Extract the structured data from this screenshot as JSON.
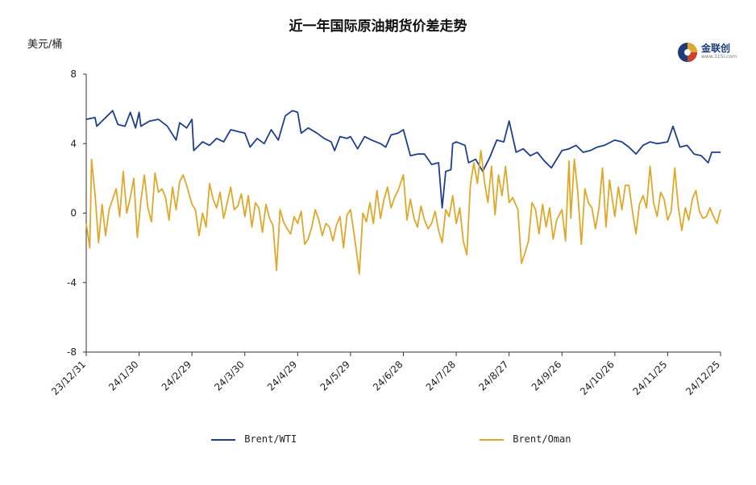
{
  "title": "近一年国际原油期货价差走势",
  "y_unit": "美元/桶",
  "logo": {
    "name": "金联创",
    "sub": "www.315i.com"
  },
  "colors": {
    "brent_wti": "#1f3f8a",
    "brent_oman": "#e0a82a",
    "axis": "#333333"
  },
  "chart_data": {
    "type": "line",
    "title": "近一年国际原油期货价差走势",
    "ylabel": "美元/桶",
    "ylim": [
      -8,
      8
    ],
    "yticks": [
      8,
      4,
      0,
      -4,
      -8
    ],
    "x_range": [
      "2023-12-31",
      "2024-12-25"
    ],
    "x_ticks": [
      "23/12/31",
      "24/1/30",
      "24/2/29",
      "24/3/30",
      "24/4/29",
      "24/5/29",
      "24/6/28",
      "24/7/28",
      "24/8/27",
      "24/9/26",
      "24/10/26",
      "24/11/25",
      "24/12/25"
    ],
    "grid": false,
    "legend_position": "bottom",
    "series": [
      {
        "name": "Brent/WTI",
        "color": "#1f3f8a",
        "points": [
          [
            "2023-12-31",
            5.4
          ],
          [
            "2024-01-05",
            5.5
          ],
          [
            "2024-01-06",
            5.0
          ],
          [
            "2024-01-12",
            5.6
          ],
          [
            "2024-01-15",
            5.9
          ],
          [
            "2024-01-18",
            5.1
          ],
          [
            "2024-01-22",
            5.0
          ],
          [
            "2024-01-25",
            5.8
          ],
          [
            "2024-01-28",
            4.9
          ],
          [
            "2024-01-30",
            5.8
          ],
          [
            "2024-01-31",
            5.0
          ],
          [
            "2024-02-05",
            5.3
          ],
          [
            "2024-02-10",
            5.4
          ],
          [
            "2024-02-15",
            5.0
          ],
          [
            "2024-02-20",
            4.2
          ],
          [
            "2024-02-22",
            5.2
          ],
          [
            "2024-02-26",
            4.9
          ],
          [
            "2024-02-29",
            5.4
          ],
          [
            "2024-03-01",
            3.6
          ],
          [
            "2024-03-06",
            4.1
          ],
          [
            "2024-03-10",
            3.9
          ],
          [
            "2024-03-14",
            4.3
          ],
          [
            "2024-03-18",
            4.1
          ],
          [
            "2024-03-22",
            4.8
          ],
          [
            "2024-03-26",
            4.7
          ],
          [
            "2024-03-30",
            4.6
          ],
          [
            "2024-04-02",
            3.8
          ],
          [
            "2024-04-06",
            4.3
          ],
          [
            "2024-04-10",
            4.0
          ],
          [
            "2024-04-14",
            4.8
          ],
          [
            "2024-04-18",
            4.2
          ],
          [
            "2024-04-22",
            5.6
          ],
          [
            "2024-04-26",
            5.9
          ],
          [
            "2024-04-29",
            5.8
          ],
          [
            "2024-05-01",
            4.6
          ],
          [
            "2024-05-05",
            4.9
          ],
          [
            "2024-05-10",
            4.6
          ],
          [
            "2024-05-14",
            4.3
          ],
          [
            "2024-05-18",
            4.1
          ],
          [
            "2024-05-20",
            3.6
          ],
          [
            "2024-05-23",
            4.4
          ],
          [
            "2024-05-27",
            4.3
          ],
          [
            "2024-05-29",
            4.4
          ],
          [
            "2024-06-02",
            3.7
          ],
          [
            "2024-06-06",
            4.4
          ],
          [
            "2024-06-10",
            4.2
          ],
          [
            "2024-06-15",
            4.0
          ],
          [
            "2024-06-18",
            3.8
          ],
          [
            "2024-06-21",
            4.5
          ],
          [
            "2024-06-25",
            4.6
          ],
          [
            "2024-06-28",
            4.8
          ],
          [
            "2024-07-02",
            3.3
          ],
          [
            "2024-07-06",
            3.4
          ],
          [
            "2024-07-10",
            3.4
          ],
          [
            "2024-07-14",
            2.8
          ],
          [
            "2024-07-18",
            2.9
          ],
          [
            "2024-07-20",
            0.3
          ],
          [
            "2024-07-22",
            2.4
          ],
          [
            "2024-07-25",
            2.5
          ],
          [
            "2024-07-26",
            4.0
          ],
          [
            "2024-07-28",
            4.1
          ],
          [
            "2024-08-02",
            3.9
          ],
          [
            "2024-08-04",
            2.9
          ],
          [
            "2024-08-08",
            3.1
          ],
          [
            "2024-08-12",
            2.4
          ],
          [
            "2024-08-16",
            3.2
          ],
          [
            "2024-08-20",
            4.2
          ],
          [
            "2024-08-24",
            4.1
          ],
          [
            "2024-08-27",
            5.3
          ],
          [
            "2024-08-31",
            3.5
          ],
          [
            "2024-09-04",
            3.7
          ],
          [
            "2024-09-08",
            3.3
          ],
          [
            "2024-09-12",
            3.5
          ],
          [
            "2024-09-16",
            3.0
          ],
          [
            "2024-09-20",
            2.6
          ],
          [
            "2024-09-26",
            3.6
          ],
          [
            "2024-09-30",
            3.7
          ],
          [
            "2024-10-04",
            3.9
          ],
          [
            "2024-10-08",
            3.5
          ],
          [
            "2024-10-12",
            3.6
          ],
          [
            "2024-10-16",
            3.8
          ],
          [
            "2024-10-20",
            3.9
          ],
          [
            "2024-10-26",
            4.2
          ],
          [
            "2024-10-30",
            4.1
          ],
          [
            "2024-11-03",
            3.8
          ],
          [
            "2024-11-07",
            3.4
          ],
          [
            "2024-11-11",
            3.9
          ],
          [
            "2024-11-15",
            4.1
          ],
          [
            "2024-11-19",
            4.0
          ],
          [
            "2024-11-25",
            4.1
          ],
          [
            "2024-11-28",
            5.0
          ],
          [
            "2024-12-02",
            3.8
          ],
          [
            "2024-12-06",
            3.9
          ],
          [
            "2024-12-10",
            3.4
          ],
          [
            "2024-12-14",
            3.3
          ],
          [
            "2024-12-18",
            2.9
          ],
          [
            "2024-12-20",
            3.5
          ],
          [
            "2024-12-25",
            3.5
          ]
        ]
      },
      {
        "name": "Brent/Oman",
        "color": "#e0a82a",
        "points": [
          [
            "2023-12-31",
            -0.6
          ],
          [
            "2024-01-02",
            -2.0
          ],
          [
            "2024-01-03",
            3.1
          ],
          [
            "2024-01-05",
            1.1
          ],
          [
            "2024-01-07",
            -1.7
          ],
          [
            "2024-01-09",
            0.5
          ],
          [
            "2024-01-11",
            -1.3
          ],
          [
            "2024-01-13",
            0.2
          ],
          [
            "2024-01-15",
            0.8
          ],
          [
            "2024-01-17",
            1.4
          ],
          [
            "2024-01-19",
            -0.2
          ],
          [
            "2024-01-21",
            2.4
          ],
          [
            "2024-01-23",
            0.0
          ],
          [
            "2024-01-25",
            0.9
          ],
          [
            "2024-01-27",
            2.0
          ],
          [
            "2024-01-29",
            -1.4
          ],
          [
            "2024-01-31",
            0.7
          ],
          [
            "2024-02-02",
            2.2
          ],
          [
            "2024-02-04",
            0.3
          ],
          [
            "2024-02-06",
            -0.5
          ],
          [
            "2024-02-08",
            2.3
          ],
          [
            "2024-02-10",
            1.2
          ],
          [
            "2024-02-12",
            1.4
          ],
          [
            "2024-02-14",
            0.9
          ],
          [
            "2024-02-16",
            -0.4
          ],
          [
            "2024-02-18",
            1.5
          ],
          [
            "2024-02-20",
            0.2
          ],
          [
            "2024-02-22",
            1.8
          ],
          [
            "2024-02-24",
            2.2
          ],
          [
            "2024-02-26",
            1.6
          ],
          [
            "2024-02-29",
            0.5
          ],
          [
            "2024-03-02",
            0.2
          ],
          [
            "2024-03-04",
            -1.3
          ],
          [
            "2024-03-06",
            0.0
          ],
          [
            "2024-03-08",
            -0.8
          ],
          [
            "2024-03-10",
            1.7
          ],
          [
            "2024-03-12",
            0.8
          ],
          [
            "2024-03-14",
            0.3
          ],
          [
            "2024-03-16",
            1.2
          ],
          [
            "2024-03-18",
            -0.3
          ],
          [
            "2024-03-20",
            0.6
          ],
          [
            "2024-03-22",
            1.5
          ],
          [
            "2024-03-24",
            0.2
          ],
          [
            "2024-03-26",
            0.4
          ],
          [
            "2024-03-28",
            1.1
          ],
          [
            "2024-03-30",
            -0.2
          ],
          [
            "2024-04-01",
            1.0
          ],
          [
            "2024-04-03",
            -0.8
          ],
          [
            "2024-04-05",
            0.6
          ],
          [
            "2024-04-07",
            0.3
          ],
          [
            "2024-04-09",
            -1.1
          ],
          [
            "2024-04-11",
            0.5
          ],
          [
            "2024-04-13",
            -0.3
          ],
          [
            "2024-04-15",
            -0.7
          ],
          [
            "2024-04-17",
            -3.3
          ],
          [
            "2024-04-19",
            0.2
          ],
          [
            "2024-04-21",
            -0.5
          ],
          [
            "2024-04-23",
            -0.9
          ],
          [
            "2024-04-25",
            -1.2
          ],
          [
            "2024-04-27",
            -0.2
          ],
          [
            "2024-04-29",
            -0.6
          ],
          [
            "2024-05-01",
            0.1
          ],
          [
            "2024-05-03",
            -1.8
          ],
          [
            "2024-05-05",
            -1.5
          ],
          [
            "2024-05-07",
            -0.8
          ],
          [
            "2024-05-09",
            0.2
          ],
          [
            "2024-05-11",
            -0.4
          ],
          [
            "2024-05-13",
            -1.3
          ],
          [
            "2024-05-15",
            -0.6
          ],
          [
            "2024-05-17",
            -0.8
          ],
          [
            "2024-05-19",
            -1.6
          ],
          [
            "2024-05-21",
            -0.7
          ],
          [
            "2024-05-23",
            -0.2
          ],
          [
            "2024-05-25",
            -2.0
          ],
          [
            "2024-05-27",
            -0.1
          ],
          [
            "2024-05-29",
            0.2
          ],
          [
            "2024-05-31",
            -1.2
          ],
          [
            "2024-06-02",
            -2.7
          ],
          [
            "2024-06-03",
            -3.5
          ],
          [
            "2024-06-05",
            0.0
          ],
          [
            "2024-06-07",
            -0.5
          ],
          [
            "2024-06-09",
            0.6
          ],
          [
            "2024-06-11",
            -0.6
          ],
          [
            "2024-06-13",
            1.3
          ],
          [
            "2024-06-15",
            -0.3
          ],
          [
            "2024-06-17",
            0.8
          ],
          [
            "2024-06-19",
            1.5
          ],
          [
            "2024-06-21",
            0.3
          ],
          [
            "2024-06-23",
            0.9
          ],
          [
            "2024-06-25",
            1.3
          ],
          [
            "2024-06-28",
            2.2
          ],
          [
            "2024-06-30",
            -0.4
          ],
          [
            "2024-07-02",
            0.8
          ],
          [
            "2024-07-04",
            -0.3
          ],
          [
            "2024-07-06",
            -0.8
          ],
          [
            "2024-07-08",
            0.4
          ],
          [
            "2024-07-10",
            -0.4
          ],
          [
            "2024-07-12",
            -0.9
          ],
          [
            "2024-07-14",
            -0.6
          ],
          [
            "2024-07-16",
            0.1
          ],
          [
            "2024-07-18",
            -1.0
          ],
          [
            "2024-07-20",
            -1.7
          ],
          [
            "2024-07-22",
            0.2
          ],
          [
            "2024-07-24",
            -0.2
          ],
          [
            "2024-07-26",
            1.0
          ],
          [
            "2024-07-28",
            -0.6
          ],
          [
            "2024-07-30",
            0.3
          ],
          [
            "2024-08-01",
            -1.6
          ],
          [
            "2024-08-03",
            -2.4
          ],
          [
            "2024-08-05",
            1.6
          ],
          [
            "2024-08-07",
            2.9
          ],
          [
            "2024-08-09",
            1.7
          ],
          [
            "2024-08-11",
            3.6
          ],
          [
            "2024-08-13",
            1.8
          ],
          [
            "2024-08-15",
            0.6
          ],
          [
            "2024-08-17",
            2.7
          ],
          [
            "2024-08-19",
            -0.1
          ],
          [
            "2024-08-21",
            2.2
          ],
          [
            "2024-08-23",
            1.0
          ],
          [
            "2024-08-25",
            2.7
          ],
          [
            "2024-08-27",
            0.6
          ],
          [
            "2024-08-29",
            0.9
          ],
          [
            "2024-09-01",
            0.2
          ],
          [
            "2024-09-03",
            -2.9
          ],
          [
            "2024-09-05",
            -2.3
          ],
          [
            "2024-09-07",
            -1.6
          ],
          [
            "2024-09-09",
            0.6
          ],
          [
            "2024-09-11",
            0.2
          ],
          [
            "2024-09-13",
            -1.2
          ],
          [
            "2024-09-15",
            0.5
          ],
          [
            "2024-09-17",
            -0.8
          ],
          [
            "2024-09-19",
            0.3
          ],
          [
            "2024-09-21",
            -1.5
          ],
          [
            "2024-09-23",
            -0.4
          ],
          [
            "2024-09-26",
            0.2
          ],
          [
            "2024-09-28",
            -1.6
          ],
          [
            "2024-09-30",
            3.0
          ],
          [
            "2024-10-01",
            -0.3
          ],
          [
            "2024-10-03",
            3.1
          ],
          [
            "2024-10-05",
            1.2
          ],
          [
            "2024-10-07",
            -1.8
          ],
          [
            "2024-10-09",
            1.4
          ],
          [
            "2024-10-11",
            0.6
          ],
          [
            "2024-10-13",
            0.3
          ],
          [
            "2024-10-15",
            -0.9
          ],
          [
            "2024-10-17",
            0.3
          ],
          [
            "2024-10-19",
            2.6
          ],
          [
            "2024-10-21",
            -0.8
          ],
          [
            "2024-10-23",
            1.9
          ],
          [
            "2024-10-26",
            -0.2
          ],
          [
            "2024-10-28",
            1.5
          ],
          [
            "2024-10-30",
            0.2
          ],
          [
            "2024-11-01",
            1.6
          ],
          [
            "2024-11-03",
            1.6
          ],
          [
            "2024-11-05",
            0.1
          ],
          [
            "2024-11-07",
            -1.2
          ],
          [
            "2024-11-09",
            0.5
          ],
          [
            "2024-11-11",
            1.0
          ],
          [
            "2024-11-13",
            0.3
          ],
          [
            "2024-11-15",
            2.7
          ],
          [
            "2024-11-17",
            0.6
          ],
          [
            "2024-11-19",
            -0.2
          ],
          [
            "2024-11-21",
            1.2
          ],
          [
            "2024-11-23",
            0.8
          ],
          [
            "2024-11-25",
            -0.4
          ],
          [
            "2024-11-27",
            0.1
          ],
          [
            "2024-11-29",
            2.6
          ],
          [
            "2024-12-01",
            0.4
          ],
          [
            "2024-12-03",
            -1.0
          ],
          [
            "2024-12-05",
            0.3
          ],
          [
            "2024-12-07",
            -0.4
          ],
          [
            "2024-12-09",
            0.8
          ],
          [
            "2024-12-11",
            1.3
          ],
          [
            "2024-12-13",
            0.1
          ],
          [
            "2024-12-15",
            -0.3
          ],
          [
            "2024-12-17",
            -0.2
          ],
          [
            "2024-12-19",
            0.3
          ],
          [
            "2024-12-21",
            -0.2
          ],
          [
            "2024-12-23",
            -0.6
          ],
          [
            "2024-12-25",
            0.2
          ]
        ]
      }
    ]
  }
}
